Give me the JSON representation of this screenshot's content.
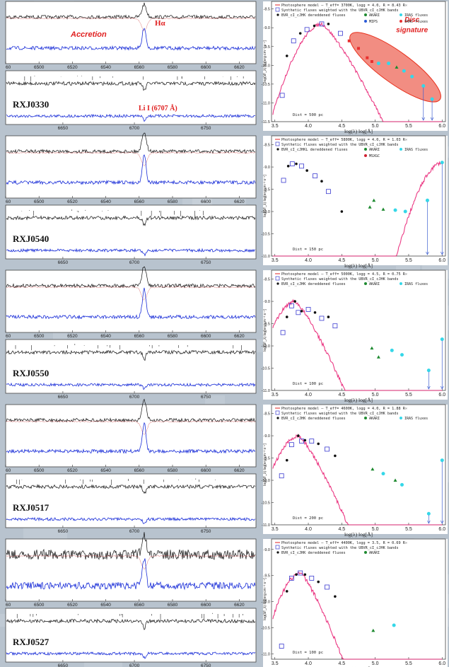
{
  "figure": {
    "spec_ha_ticks": [
      "60",
      "6500",
      "6520",
      "6540",
      "6560",
      "6580",
      "6600",
      "6620"
    ],
    "spec_li_ticks": [
      "6650",
      "6700",
      "6750"
    ],
    "sed_x_ticks": [
      "3.5",
      "4.0",
      "4.5",
      "5.0",
      "5.5",
      "6.0"
    ],
    "sed_xlabel": "log(λ) log[Å]",
    "sed_ylabel": "log(λF_λ) log[erg cm⁻² s⁻¹]",
    "colors": {
      "observed": "#111111",
      "model_spec": "#1a2ed8",
      "model_sed": "#e8186e",
      "photometry": "#3a3ad0",
      "akari": "#1e8a30",
      "iras": "#35d7e8",
      "mips": "#2a5ad8",
      "irac": "#e83030",
      "msx": "#d02030",
      "disc": "#e8301c"
    }
  },
  "stars": [
    {
      "name": "RXJ0330",
      "annotations": {
        "accretion": "Accretion",
        "halpha": "Hα",
        "lithium": "Li I (6707 Å)",
        "disc": "Disc",
        "disc2": "signature"
      },
      "legend": [
        "Photosphere model – T_eff= 3700K, logg = 4.0, R = 8.43 R☉",
        "Synthetic fluxes weighted with the UBVR_cI_cJHK bands",
        "BVR_cI_cJHK dereddened fluxes",
        "AKARI",
        "IRAS fluxes",
        "MIPS",
        "IRAC fluxes"
      ],
      "distance": "Dist = 500 pc",
      "sed_y_ticks": [
        "-8.5",
        "-9.0",
        "-9.5",
        "-10.0",
        "-10.5",
        "-11.0",
        "-11.5"
      ],
      "sed_ylim": [
        -11.5,
        -8.3
      ],
      "chart_data": {
        "type": "scatter",
        "x": [
          3.61,
          3.68,
          3.78,
          3.88,
          3.98,
          4.09,
          4.2,
          4.3,
          4.48,
          4.61,
          4.75,
          4.88,
          4.95,
          5.05,
          5.2,
          5.32,
          5.43,
          5.55,
          5.72,
          5.85
        ],
        "y": [
          -10.8,
          -9.75,
          -9.35,
          -9.15,
          -9.05,
          -8.95,
          -8.9,
          -8.9,
          -9.15,
          -9.35,
          -9.55,
          -9.8,
          -9.9,
          -9.95,
          -9.95,
          -10.05,
          -10.15,
          -10.3,
          -10.55,
          -10.9
        ]
      }
    },
    {
      "name": "RXJ0540",
      "legend": [
        "Photosphere model – T_eff= 5800K, logg = 4.0, R = 1.03 R☉",
        "Synthetic fluxes weighted with the UBVR_cI_cJHK bands",
        "BVR_cI_cJHKL dereddened fluxes",
        "AKARI",
        "IRAS fluxes",
        "MSXGC"
      ],
      "distance": "Dist = 150 pc",
      "sed_y_ticks": [
        "-8.5",
        "-9.0",
        "-9.5",
        "-10.0",
        "-10.5",
        "-11.0"
      ],
      "sed_ylim": [
        -11.0,
        -8.3
      ],
      "chart_data": {
        "type": "scatter",
        "x": [
          3.63,
          3.7,
          3.76,
          3.82,
          3.9,
          3.98,
          4.1,
          4.2,
          4.3,
          4.5,
          4.92,
          4.98,
          5.12,
          5.3,
          5.45,
          5.78,
          6.0
        ],
        "y": [
          -9.3,
          -8.98,
          -8.93,
          -8.93,
          -8.98,
          -9.08,
          -9.2,
          -9.32,
          -9.55,
          -10.0,
          -9.9,
          -9.75,
          -9.95,
          -9.97,
          -10.0,
          -9.75,
          -8.9
        ]
      }
    },
    {
      "name": "RXJ0550",
      "legend": [
        "Photosphere model – T_eff= 5000K, logg = 4.5, R = 0.75 R☉",
        "Synthetic fluxes weighted with the UBVR_cI_cJHK bands",
        "BVR_cI_cJHK dereddened fluxes",
        "AKARI",
        "IRAS fluxes"
      ],
      "distance": "Dist = 100 pc",
      "sed_y_ticks": [
        "-8.5",
        "-9.0",
        "-9.5",
        "-10.0",
        "-10.5",
        "-11.0"
      ],
      "sed_ylim": [
        -11.0,
        -8.3
      ],
      "chart_data": {
        "type": "scatter",
        "x": [
          3.62,
          3.68,
          3.75,
          3.8,
          3.85,
          3.9,
          4.0,
          4.1,
          4.2,
          4.3,
          4.4,
          4.95,
          5.05,
          5.25,
          5.4,
          5.8,
          6.0
        ],
        "y": [
          -9.7,
          -9.35,
          -9.1,
          -9.0,
          -9.25,
          -9.22,
          -9.18,
          -9.25,
          -9.38,
          -9.35,
          -9.55,
          -10.05,
          -10.25,
          -10.1,
          -10.2,
          -10.55,
          -9.85
        ]
      }
    },
    {
      "name": "RXJ0517",
      "legend": [
        "Photosphere model – T_eff= 4600K, logg = 4.0, R = 1.88 R☉",
        "Synthetic fluxes weighted with the UBVR_cI_cJHK bands",
        "BVR_cI_cJHK dereddened fluxes",
        "AKARI",
        "IRAS fluxes"
      ],
      "distance": "Dist = 200 pc",
      "sed_y_ticks": [
        "-8.5",
        "-9.0",
        "-9.5",
        "-10.0",
        "-10.5",
        "-11.0"
      ],
      "sed_ylim": [
        -11.0,
        -8.3
      ],
      "chart_data": {
        "type": "scatter",
        "x": [
          3.6,
          3.68,
          3.75,
          3.85,
          3.9,
          3.95,
          4.05,
          4.15,
          4.28,
          4.4,
          4.96,
          5.12,
          5.3,
          5.4,
          5.8,
          6.0
        ],
        "y": [
          -9.9,
          -9.55,
          -9.2,
          -9.0,
          -9.12,
          -9.1,
          -9.12,
          -9.18,
          -9.3,
          -9.45,
          -9.75,
          -9.85,
          -10.0,
          -10.1,
          -10.75,
          -9.55
        ]
      }
    },
    {
      "name": "RXJ0527",
      "legend": [
        "Photosphere model – T_eff= 4400K, logg = 3.5, R = 0.69 R☉",
        "Synthetic fluxes weighted with the UBVR_cI_cJHK bands",
        "BVR_cI_cJHK dereddened fluxes",
        "AKARI"
      ],
      "distance": "Dist = 100 pc",
      "sed_y_ticks": [
        "-9.0",
        "-9.5",
        "-10.0",
        "-10.5",
        "-11.0"
      ],
      "sed_ylim": [
        -11.1,
        -8.8
      ],
      "chart_data": {
        "type": "scatter",
        "x": [
          3.6,
          3.68,
          3.75,
          3.82,
          3.88,
          3.95,
          4.05,
          4.15,
          4.28,
          4.4,
          4.97,
          5.28
        ],
        "y": [
          -10.85,
          -9.8,
          -9.55,
          -9.48,
          -9.45,
          -9.48,
          -9.55,
          -9.62,
          -9.72,
          -9.9,
          -10.55,
          -10.45
        ]
      }
    }
  ]
}
